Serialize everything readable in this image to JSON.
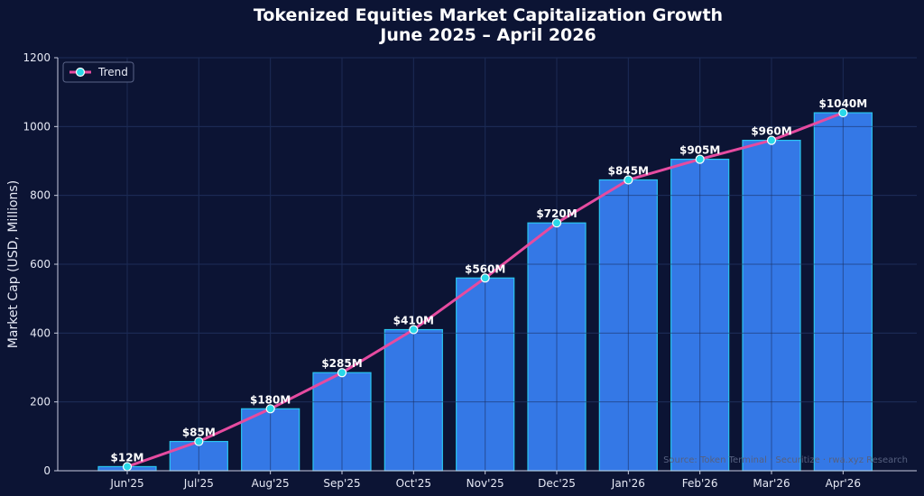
{
  "chart_data": {
    "type": "bar",
    "title": "Tokenized Equities Market Capitalization Growth",
    "subtitle": "June 2025 – April 2026",
    "xlabel": "",
    "ylabel": "Market Cap (USD, Millions)",
    "ylim": [
      0,
      1200
    ],
    "yticks": [
      0,
      200,
      400,
      600,
      800,
      1000,
      1200
    ],
    "categories": [
      "Jun'25",
      "Jul'25",
      "Aug'25",
      "Sep'25",
      "Oct'25",
      "Nov'25",
      "Dec'25",
      "Jan'26",
      "Feb'26",
      "Mar'26",
      "Apr'26"
    ],
    "values": [
      12,
      85,
      180,
      285,
      410,
      560,
      720,
      845,
      905,
      960,
      1040
    ],
    "data_labels": [
      "$12M",
      "$85M",
      "$180M",
      "$285M",
      "$410M",
      "$560M",
      "$720M",
      "$845M",
      "$905M",
      "$960M",
      "$1040M"
    ],
    "series": [
      {
        "type": "line",
        "name": "Trend",
        "values": [
          12,
          85,
          180,
          285,
          410,
          560,
          720,
          845,
          905,
          960,
          1040
        ]
      }
    ],
    "legend": {
      "position": "top-left",
      "label": "Trend"
    },
    "grid": true,
    "source_note": "Source: Token Terminal · Securitize · rwa.xyz Research",
    "colors": {
      "background": "#0c1434",
      "bar_fill": "#3478e6",
      "bar_edge": "#29c6f0",
      "line": "#e64ba0",
      "marker": "#29d8e8"
    }
  }
}
